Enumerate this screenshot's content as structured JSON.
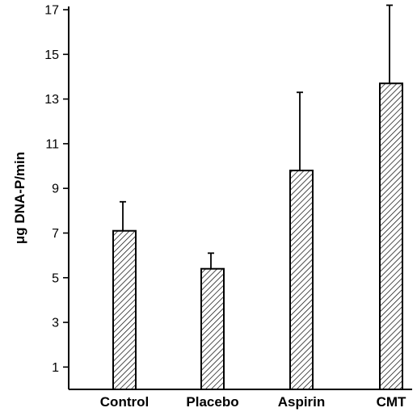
{
  "chart_data": {
    "type": "bar",
    "title": "",
    "xlabel": "",
    "ylabel": "μg DNA-P/min",
    "ylim": [
      0,
      17
    ],
    "yticks": [
      1,
      3,
      5,
      7,
      9,
      11,
      13,
      15,
      17
    ],
    "categories": [
      "Control",
      "Placebo",
      "Aspirin",
      "CMT"
    ],
    "values": [
      7.1,
      5.4,
      9.8,
      13.7
    ],
    "error_upper": [
      8.4,
      6.1,
      13.3,
      17.2
    ],
    "bar_fill": "diagonal-hatch",
    "colors": {
      "ink": "#000000",
      "background": "#ffffff"
    },
    "grid": false,
    "legend": "none"
  }
}
